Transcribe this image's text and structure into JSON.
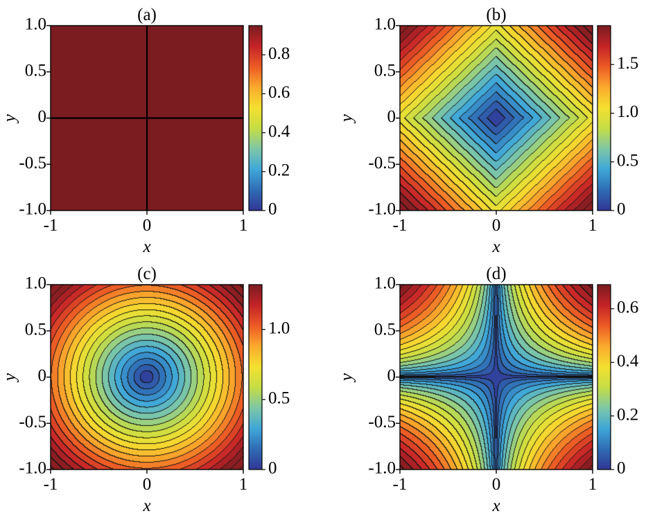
{
  "chart_data": [
    {
      "type": "heatmap",
      "title": "(a)",
      "xlabel": "x",
      "ylabel": "y",
      "xlim": [
        -1,
        1
      ],
      "ylim": [
        -1,
        1
      ],
      "x_ticks": [
        "-1",
        "0",
        "1"
      ],
      "y_ticks": [
        "1.0",
        "0.5",
        "0",
        "-0.5",
        "-1.0"
      ],
      "colorbar_range": [
        0,
        0.95
      ],
      "colorbar_ticks": [
        "0",
        "0.2",
        "0.4",
        "0.6",
        "0.8"
      ],
      "colorbar_values": [
        0,
        0.2,
        0.4,
        0.6,
        0.8
      ],
      "field": "constant",
      "level_value": 1.0,
      "contour_lines": [
        "x = 0",
        "y = 0"
      ],
      "grid": false
    },
    {
      "type": "heatmap",
      "title": "(b)",
      "xlabel": "x",
      "ylabel": "y",
      "xlim": [
        -1,
        1
      ],
      "ylim": [
        -1,
        1
      ],
      "x_ticks": [
        "-1",
        "0",
        "1"
      ],
      "y_ticks": [
        "1.0",
        "0.5",
        "0",
        "-0.5",
        "-1.0"
      ],
      "colorbar_range": [
        0,
        1.9
      ],
      "colorbar_ticks": [
        "0",
        "0.5",
        "1.0",
        "1.5"
      ],
      "colorbar_values": [
        0,
        0.5,
        1.0,
        1.5
      ],
      "field": "|x| + |y|",
      "contour_levels": 20,
      "grid": false
    },
    {
      "type": "heatmap",
      "title": "(c)",
      "xlabel": "x",
      "ylabel": "y",
      "xlim": [
        -1,
        1
      ],
      "ylim": [
        -1,
        1
      ],
      "x_ticks": [
        "-1",
        "0",
        "1"
      ],
      "y_ticks": [
        "1.0",
        "0.5",
        "0",
        "-0.5",
        "-1.0"
      ],
      "colorbar_range": [
        0,
        1.32
      ],
      "colorbar_ticks": [
        "0",
        "0.5",
        "1.0"
      ],
      "colorbar_values": [
        0,
        0.5,
        1.0
      ],
      "field": "sqrt(x^2 + y^2)",
      "contour_levels": 20,
      "grid": false
    },
    {
      "type": "heatmap",
      "title": "(d)",
      "xlabel": "x",
      "ylabel": "y",
      "xlim": [
        -1,
        1
      ],
      "ylim": [
        -1,
        1
      ],
      "x_ticks": [
        "-1",
        "0",
        "1"
      ],
      "y_ticks": [
        "1.0",
        "0.5",
        "0",
        "-0.5",
        "-1.0"
      ],
      "colorbar_range": [
        0,
        0.69
      ],
      "colorbar_ticks": [
        "0",
        "0.2",
        "0.4",
        "0.6"
      ],
      "colorbar_values": [
        0,
        0.2,
        0.4,
        0.6
      ],
      "field": "(x^2 * y^2)^(1/4) / sqrt(2)",
      "contour_levels": 20,
      "grid": false
    }
  ],
  "colormap": [
    "#313695",
    "#2f6cb4",
    "#3fa7d8",
    "#7ec7a6",
    "#c5dd45",
    "#f4e02f",
    "#fbaa2d",
    "#ec5a25",
    "#c42327",
    "#7a1c20"
  ]
}
